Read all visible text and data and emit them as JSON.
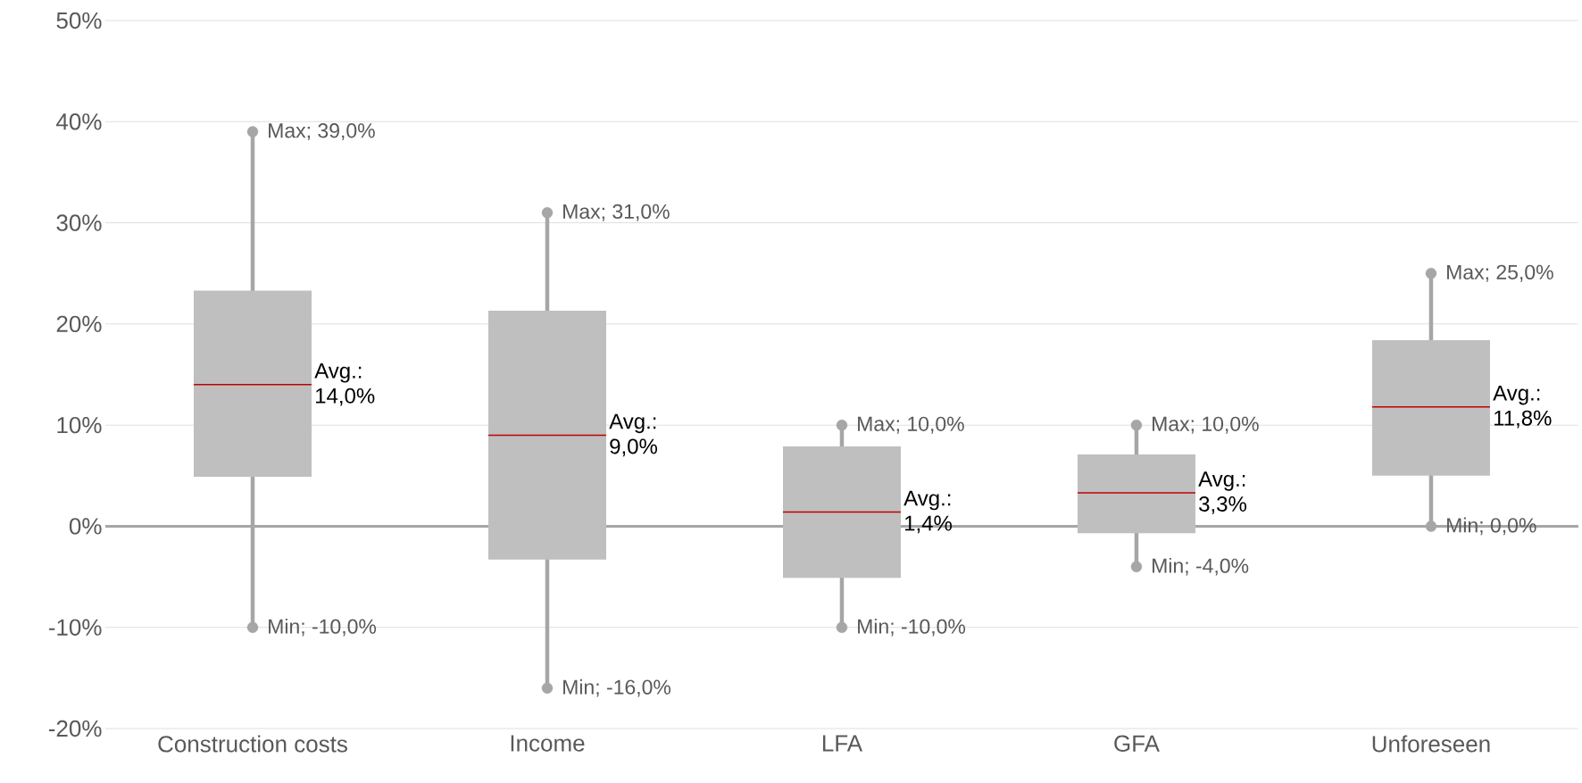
{
  "chart_data": {
    "type": "box",
    "categories": [
      "Construction costs",
      "Income",
      "LFA",
      "GFA",
      "Unforeseen"
    ],
    "boxes": [
      {
        "low": -10,
        "q1": 4.9,
        "median": 14.0,
        "q3": 23.3,
        "high": 39
      },
      {
        "low": -16,
        "q1": -3.3,
        "median": 9.0,
        "q3": 21.3,
        "high": 31
      },
      {
        "low": -10,
        "q1": -5.1,
        "median": 1.4,
        "q3": 7.9,
        "high": 10
      },
      {
        "low": -4,
        "q1": -0.7,
        "median": 3.3,
        "q3": 7.1,
        "high": 10
      },
      {
        "low": 0,
        "q1": 5.0,
        "median": 11.8,
        "q3": 18.4,
        "high": 25
      }
    ],
    "color": "#bfbfbf",
    "ylim": [
      -20,
      50
    ],
    "yticks": [
      {
        "value": -20,
        "label": "-20%"
      },
      {
        "value": -10,
        "label": "-10%"
      },
      {
        "value": 0,
        "label": "0%"
      },
      {
        "value": 10,
        "label": "10%"
      },
      {
        "value": 20,
        "label": "20%"
      },
      {
        "value": 30,
        "label": "30%"
      },
      {
        "value": 40,
        "label": "40%"
      },
      {
        "value": 50,
        "label": "50%"
      }
    ],
    "grid": "y",
    "ref_lines": [
      {
        "axis": "y",
        "value": 0,
        "color": "#a6a6a6"
      }
    ],
    "annotations": [
      {
        "text": "Max; 39,0%",
        "x": "Construction costs",
        "y": 39
      },
      {
        "text": "Min; -10,0%",
        "x": "Construction costs",
        "y": -10
      },
      {
        "text": "Avg.: 14,0%",
        "x": "Construction costs",
        "y": 14.0
      },
      {
        "text": "Max; 31,0%",
        "x": "Income",
        "y": 31
      },
      {
        "text": "Min; -16,0%",
        "x": "Income",
        "y": -16
      },
      {
        "text": "Avg.: 9,0%",
        "x": "Income",
        "y": 9.0
      },
      {
        "text": "Max; 10,0%",
        "x": "LFA",
        "y": 10
      },
      {
        "text": "Min; -10,0%",
        "x": "LFA",
        "y": -10
      },
      {
        "text": "Avg.: 1,4%",
        "x": "LFA",
        "y": 1.4
      },
      {
        "text": "Max; 10,0%",
        "x": "GFA",
        "y": 10
      },
      {
        "text": "Min; -4,0%",
        "x": "GFA",
        "y": -4
      },
      {
        "text": "Avg.: 3,3%",
        "x": "GFA",
        "y": 3.3
      },
      {
        "text": "Max; 25,0%",
        "x": "Unforeseen",
        "y": 25
      },
      {
        "text": "Min; 0,0%",
        "x": "Unforeseen",
        "y": 0
      },
      {
        "text": "Avg.: 11,8%",
        "x": "Unforeseen",
        "y": 11.8
      }
    ]
  }
}
